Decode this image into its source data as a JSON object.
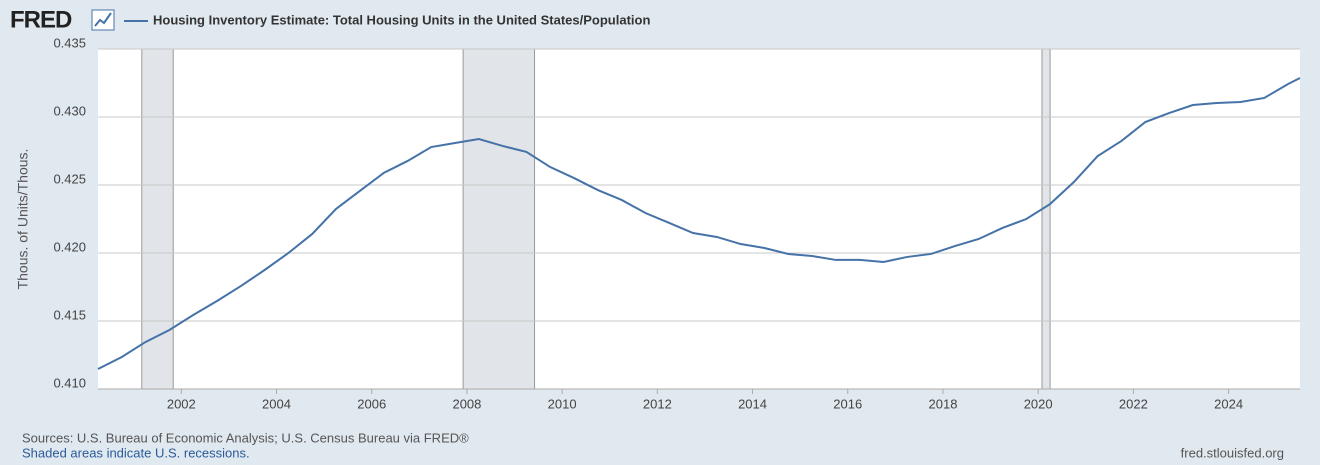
{
  "header": {
    "logo": "FRED"
  },
  "chart_data": {
    "type": "line",
    "ylabel": "Thous. of Units/Thous.",
    "x": [
      2000.25,
      2000.75,
      2001.25,
      2001.75,
      2002.25,
      2002.75,
      2003.25,
      2003.75,
      2004.25,
      2004.75,
      2005.25,
      2005.75,
      2006.25,
      2006.75,
      2007.25,
      2007.75,
      2008.25,
      2008.75,
      2009.25,
      2009.75,
      2010.25,
      2010.75,
      2011.25,
      2011.75,
      2012.25,
      2012.75,
      2013.25,
      2013.75,
      2014.25,
      2014.75,
      2015.25,
      2015.75,
      2016.25,
      2016.75,
      2017.25,
      2017.75,
      2018.25,
      2018.75,
      2019.25,
      2019.75,
      2020.25,
      2020.75,
      2021.25,
      2021.75,
      2022.25,
      2022.75,
      2023.25,
      2023.75,
      2024.25,
      2024.75,
      2025.25,
      2025.5
    ],
    "series": [
      {
        "name": "Housing Inventory Estimate: Total Housing Units in the United States/Population",
        "color": "#4572a7",
        "values": [
          0.41147,
          0.41235,
          0.41346,
          0.41434,
          0.41544,
          0.41647,
          0.41757,
          0.41875,
          0.42,
          0.4214,
          0.42324,
          0.42456,
          0.42588,
          0.42676,
          0.42779,
          0.42809,
          0.42838,
          0.42787,
          0.42743,
          0.42632,
          0.42551,
          0.42463,
          0.4239,
          0.42294,
          0.42221,
          0.42147,
          0.42118,
          0.42066,
          0.42037,
          0.41993,
          0.41978,
          0.41949,
          0.41949,
          0.41934,
          0.41971,
          0.41993,
          0.42051,
          0.42103,
          0.42184,
          0.4225,
          0.4236,
          0.42522,
          0.42713,
          0.42824,
          0.42963,
          0.43029,
          0.43088,
          0.43103,
          0.4311,
          0.4314,
          0.43243,
          0.43287
        ]
      }
    ],
    "xlim": [
      2000.25,
      2025.5
    ],
    "ylim": [
      0.41,
      0.435
    ],
    "xticks": [
      2002,
      2004,
      2006,
      2008,
      2010,
      2012,
      2014,
      2016,
      2018,
      2020,
      2022,
      2024
    ],
    "yticks": [
      {
        "value": 0.41,
        "label": "0.410"
      },
      0.415,
      {
        "value": 0.42,
        "label": "0.420"
      },
      0.425,
      {
        "value": 0.43,
        "label": "0.430"
      },
      0.435
    ],
    "recessions": [
      [
        2001.17,
        2001.83
      ],
      [
        2007.92,
        2009.42
      ],
      [
        2020.08,
        2020.25
      ]
    ],
    "grid": true
  },
  "footer": {
    "sources": "Sources: U.S. Bureau of Economic Analysis; U.S. Census Bureau via FRED®",
    "note": "Shaded areas indicate U.S. recessions.",
    "url": "fred.stlouisfed.org"
  }
}
